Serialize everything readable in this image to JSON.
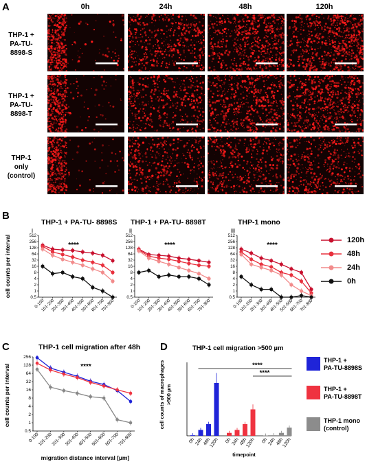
{
  "panelA": {
    "letter": "A",
    "timepoints": [
      "0h",
      "24h",
      "48h",
      "120h"
    ],
    "rows": [
      [
        "THP-1 +",
        "PA-TU-",
        "8898-S"
      ],
      [
        "THP-1 +",
        "PA-TU-",
        "8898-T"
      ],
      [
        "THP-1",
        "only",
        "(control)"
      ]
    ],
    "density": [
      [
        0.35,
        0.5,
        0.72,
        0.85
      ],
      [
        0.35,
        0.45,
        0.62,
        0.75
      ],
      [
        0.3,
        0.38,
        0.42,
        0.48
      ]
    ],
    "scale_color": "#ffffff",
    "signal_color": "#ff1a1a"
  },
  "panelB": {
    "letter": "B",
    "sub": [
      {
        "roman": "i",
        "title": "THP-1 + PA-TU- 8898S"
      },
      {
        "roman": "ii",
        "title": "THP-1 + PA-TU- 8898T"
      },
      {
        "roman": "iii",
        "title": "THP-1 mono"
      }
    ],
    "ylabel": "cell counts per interval",
    "sig": "****",
    "legend": [
      "120h",
      "48h",
      "24h",
      "0h"
    ],
    "colors": [
      "#c8102e",
      "#e8303d",
      "#f28b8b",
      "#111111"
    ]
  },
  "panelC": {
    "letter": "C",
    "title": "THP-1 cell migration after 48h",
    "ylabel": "cell counts per interval",
    "xlabel": "migration distance interval [µm]",
    "sig": "****"
  },
  "panelD": {
    "letter": "D",
    "title": "THP-1 cell migration >500 µm",
    "ylabel": "cell counts of macrophages >500 µm",
    "xlabel": "timepoint",
    "sig1": "****",
    "sig2": "****",
    "legend": [
      [
        "THP-1 +",
        "PA-TU-8898S"
      ],
      [
        "THP-1 +",
        "PA-TU-8898T"
      ],
      [
        "THP-1 mono",
        "(control)"
      ]
    ],
    "colors": [
      "#1f24d8",
      "#ef3340",
      "#8c8c8c"
    ]
  },
  "chart_data": [
    {
      "type": "line",
      "id": "Bi",
      "title": "THP-1 + PA-TU- 8898S",
      "ylabel": "cell counts per interval",
      "y_scale": "log2",
      "yticks": [
        "0.5",
        "1",
        "2",
        "4",
        "8",
        "16",
        "32",
        "64",
        "128",
        "256",
        "512"
      ],
      "ylim": [
        0.5,
        512
      ],
      "categories": [
        "0-100",
        "101-200",
        "201-300",
        "301-400",
        "401-500",
        "501-600",
        "601-700",
        "701-800"
      ],
      "series": [
        {
          "name": "120h",
          "values": [
            170,
            110,
            100,
            95,
            80,
            70,
            55,
            30
          ]
        },
        {
          "name": "48h",
          "values": [
            150,
            80,
            60,
            45,
            32,
            25,
            18,
            8
          ]
        },
        {
          "name": "24h",
          "values": [
            110,
            55,
            35,
            25,
            18,
            12,
            8,
            3
          ]
        },
        {
          "name": "0h",
          "values": [
            16,
            7,
            8,
            5,
            4,
            1.5,
            1,
            0.5
          ]
        }
      ]
    },
    {
      "type": "line",
      "id": "Bii",
      "title": "THP-1 + PA-TU- 8898T",
      "ylabel": "",
      "y_scale": "log2",
      "yticks": [
        "0.5",
        "1",
        "2",
        "4",
        "8",
        "16",
        "32",
        "64",
        "128",
        "256",
        "512"
      ],
      "ylim": [
        0.5,
        512
      ],
      "categories": [
        "0-100",
        "101-200",
        "201-300",
        "301-400",
        "401-500",
        "501-600",
        "601-700",
        "701-800"
      ],
      "series": [
        {
          "name": "120h",
          "values": [
            110,
            60,
            55,
            50,
            40,
            35,
            30,
            25
          ]
        },
        {
          "name": "48h",
          "values": [
            100,
            50,
            40,
            35,
            28,
            22,
            18,
            16
          ]
        },
        {
          "name": "24h",
          "values": [
            90,
            40,
            28,
            20,
            14,
            10,
            7,
            4
          ]
        },
        {
          "name": "0h",
          "values": [
            8,
            10,
            5,
            6,
            5,
            5,
            4,
            2
          ]
        }
      ]
    },
    {
      "type": "line",
      "id": "Biii",
      "title": "THP-1 mono",
      "ylabel": "",
      "y_scale": "log2",
      "yticks": [
        "0.5",
        "1",
        "2",
        "4",
        "8",
        "16",
        "32",
        "64",
        "128",
        "256",
        "512"
      ],
      "ylim": [
        0.5,
        512
      ],
      "categories": [
        "0-100",
        "101-200",
        "201-300",
        "301-400",
        "401-500",
        "501-600",
        "601-700",
        "701-800"
      ],
      "series": [
        {
          "name": "120h",
          "values": [
            110,
            70,
            40,
            30,
            20,
            12,
            8,
            1.2
          ]
        },
        {
          "name": "48h",
          "values": [
            80,
            35,
            20,
            15,
            8,
            6,
            3,
            0.8
          ]
        },
        {
          "name": "24h",
          "values": [
            60,
            20,
            14,
            10,
            6,
            2,
            1,
            0.6
          ]
        },
        {
          "name": "0h",
          "values": [
            5,
            2,
            1.2,
            1.2,
            0.5,
            0.5,
            0.6,
            0.5
          ]
        }
      ]
    },
    {
      "type": "line",
      "id": "C",
      "title": "THP-1 cell migration after 48h",
      "ylabel": "cell counts per interval",
      "xlabel": "migration distance interval [µm]",
      "y_scale": "log2",
      "yticks": [
        "0.5",
        "1",
        "2",
        "4",
        "8",
        "16",
        "32",
        "64",
        "128",
        "256"
      ],
      "ylim": [
        0.5,
        256
      ],
      "categories": [
        "0-100",
        "101-200",
        "201-300",
        "301-400",
        "401-500",
        "501-600",
        "601-700",
        "701-800"
      ],
      "series": [
        {
          "color": "#1f24d8",
          "values": [
            240,
            100,
            70,
            50,
            33,
            25,
            15,
            6
          ]
        },
        {
          "color": "#ef3340",
          "values": [
            150,
            85,
            60,
            45,
            30,
            22,
            16,
            12
          ]
        },
        {
          "color": "#888888",
          "values": [
            90,
            20,
            15,
            12,
            9,
            8,
            1.3,
            1.0
          ]
        }
      ]
    },
    {
      "type": "bar",
      "id": "D",
      "title": "THP-1 cell migration >500 µm",
      "ylabel": "cell counts of macrophages >500 µm",
      "xlabel": "timepoint",
      "ylim": [
        0,
        250
      ],
      "yticks": [
        "0",
        "50",
        "100",
        "150",
        "200",
        "250"
      ],
      "groups": [
        {
          "name": "THP-1 + PA-TU-8898S",
          "categories": [
            "0h",
            "24h",
            "48h",
            "120h"
          ],
          "values": [
            2,
            20,
            40,
            180
          ]
        },
        {
          "name": "THP-1 + PA-TU-8898T",
          "categories": [
            "0h",
            "24h",
            "48h",
            "120h"
          ],
          "values": [
            10,
            20,
            40,
            90
          ]
        },
        {
          "name": "THP-1 mono (control)",
          "categories": [
            "0h",
            "24h",
            "48h",
            "120h"
          ],
          "values": [
            1,
            2,
            10,
            28
          ]
        }
      ]
    }
  ]
}
